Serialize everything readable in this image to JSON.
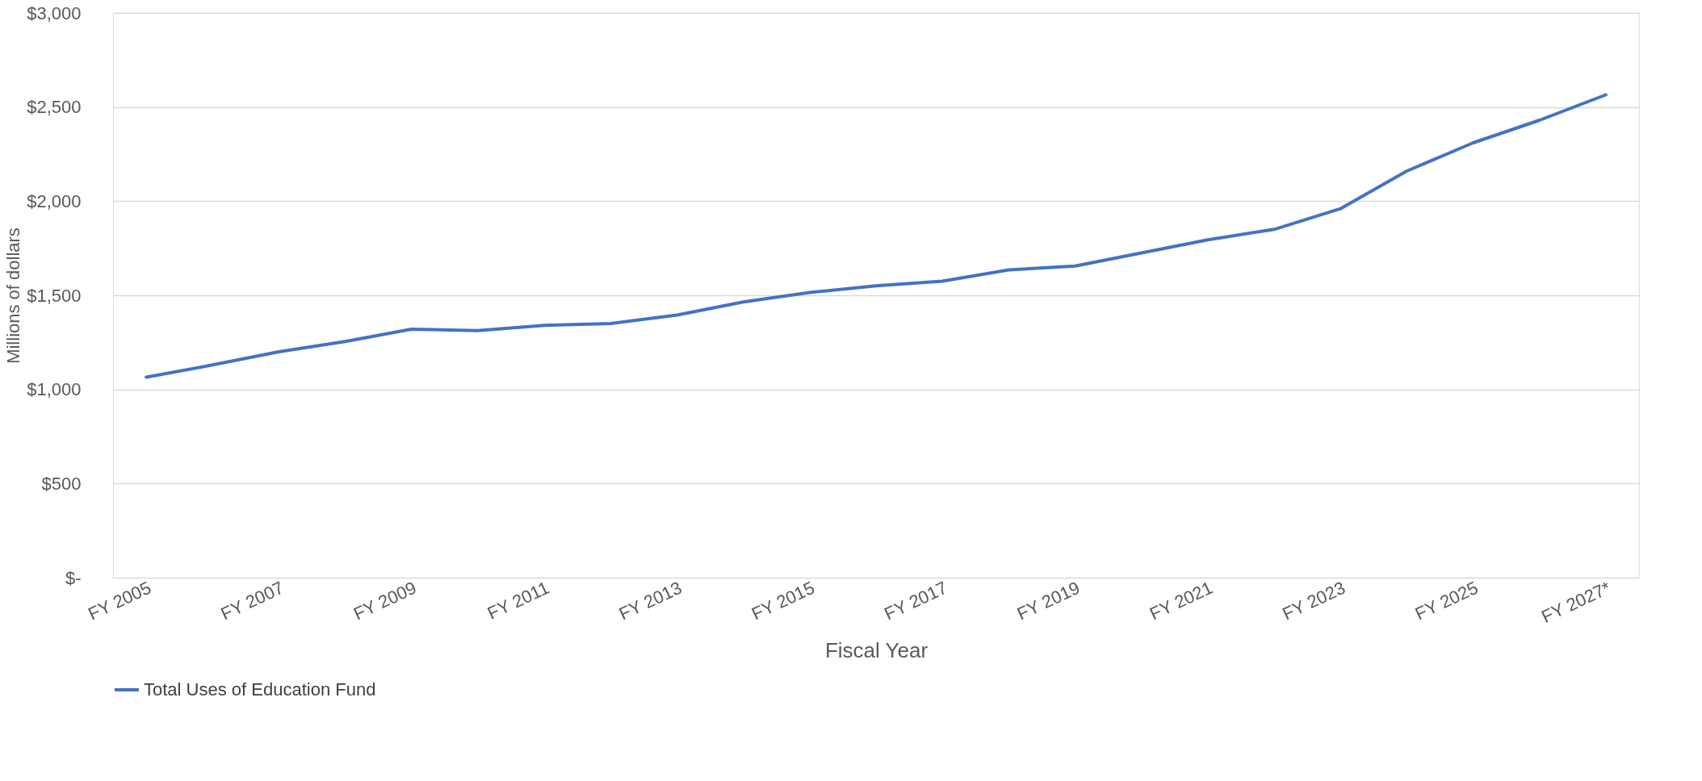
{
  "chart_data": {
    "type": "line",
    "xlabel": "Fiscal Year",
    "ylabel": "Millions of dollars",
    "categories": [
      "FY 2005",
      null,
      "FY 2007",
      null,
      "FY 2009",
      null,
      "FY 2011",
      null,
      "FY 2013",
      null,
      "FY 2015",
      null,
      "FY 2017",
      null,
      "FY 2019",
      null,
      "FY 2021",
      null,
      "FY 2023",
      null,
      "FY 2025",
      null,
      "FY 2027*"
    ],
    "series": [
      {
        "name": "Total Uses of Education Fund",
        "color": "#4472c4",
        "values": [
          1065,
          1130,
          1200,
          1255,
          1320,
          1312,
          1340,
          1350,
          1395,
          1465,
          1515,
          1550,
          1575,
          1635,
          1655,
          1725,
          1795,
          1850,
          1960,
          2160,
          2310,
          2430,
          2565
        ]
      }
    ],
    "ylim": [
      0,
      3000
    ],
    "yticks": [
      {
        "value": 0,
        "label": "$-"
      },
      {
        "value": 500,
        "label": "$500"
      },
      {
        "value": 1000,
        "label": "$1,000"
      },
      {
        "value": 1500,
        "label": "$1,500"
      },
      {
        "value": 2000,
        "label": "$2,000"
      },
      {
        "value": 2500,
        "label": "$2,500"
      },
      {
        "value": 3000,
        "label": "$3,000"
      }
    ],
    "grid": "y",
    "legend": "bottom",
    "marker": "none",
    "line_style": "solid"
  }
}
